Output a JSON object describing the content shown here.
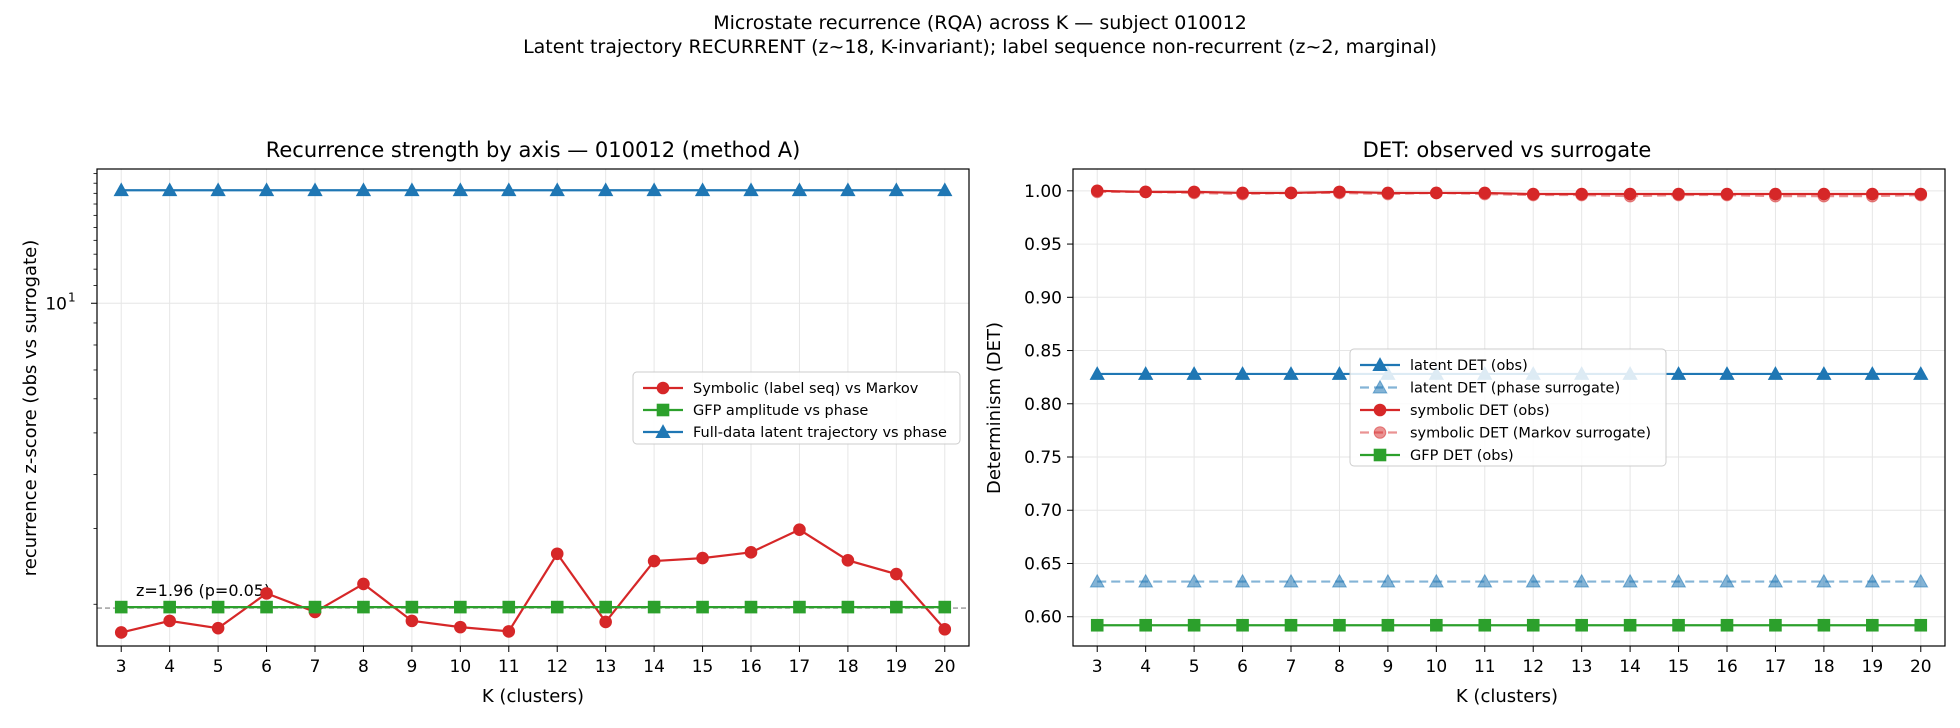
{
  "suptitle": {
    "line1": "Microstate recurrence (RQA) across K — subject 010012",
    "line2": "Latent trajectory RECURRENT (z~18, K-invariant); label sequence non-recurrent (z~2, marginal)"
  },
  "chart_data": [
    {
      "type": "line",
      "title": "Recurrence strength by axis — 010012 (method A)",
      "xlabel": "K (clusters)",
      "ylabel": "recurrence z-score (obs vs surrogate)",
      "yscale": "log",
      "ylim": [
        1.6,
        20.5
      ],
      "y_ticks": [
        {
          "value": 10,
          "base": "10",
          "exp": "1"
        }
      ],
      "x": [
        3,
        4,
        5,
        6,
        7,
        8,
        9,
        10,
        11,
        12,
        13,
        14,
        15,
        16,
        17,
        18,
        19,
        20
      ],
      "grid": true,
      "legend_position": "center-right",
      "reference_line": {
        "y": 1.96,
        "label": "z=1.96 (p=0.05)",
        "color": "#7f7f7f"
      },
      "series": [
        {
          "name": "Symbolic (label seq) vs Markov",
          "color": "#d62728",
          "marker": "circle",
          "values": [
            1.72,
            1.83,
            1.76,
            2.12,
            1.92,
            2.23,
            1.83,
            1.77,
            1.73,
            2.62,
            1.82,
            2.52,
            2.56,
            2.64,
            2.98,
            2.53,
            2.35,
            1.75
          ]
        },
        {
          "name": "GFP amplitude vs phase",
          "color": "#2ca02c",
          "marker": "square",
          "values": [
            1.97,
            1.97,
            1.97,
            1.97,
            1.97,
            1.97,
            1.97,
            1.97,
            1.97,
            1.97,
            1.97,
            1.97,
            1.97,
            1.97,
            1.97,
            1.97,
            1.97,
            1.97
          ]
        },
        {
          "name": "Full-data latent trajectory vs phase",
          "color": "#1f77b4",
          "marker": "triangle",
          "values": [
            18.3,
            18.3,
            18.3,
            18.3,
            18.3,
            18.3,
            18.3,
            18.3,
            18.3,
            18.3,
            18.3,
            18.3,
            18.3,
            18.3,
            18.3,
            18.3,
            18.3,
            18.3
          ]
        }
      ]
    },
    {
      "type": "line",
      "title": "DET: observed vs surrogate",
      "xlabel": "K (clusters)",
      "ylabel": "Determinism (DET)",
      "ylim": [
        0.5725,
        1.0205
      ],
      "y_ticks": [
        0.6,
        0.65,
        0.7,
        0.75,
        0.8,
        0.85,
        0.9,
        0.95,
        1.0
      ],
      "x": [
        3,
        4,
        5,
        6,
        7,
        8,
        9,
        10,
        11,
        12,
        13,
        14,
        15,
        16,
        17,
        18,
        19,
        20
      ],
      "grid": true,
      "legend_position": "center",
      "series": [
        {
          "name": "latent DET (obs)",
          "color": "#1f77b4",
          "marker": "triangle",
          "style": "solid",
          "values": [
            0.828,
            0.828,
            0.828,
            0.828,
            0.828,
            0.828,
            0.828,
            0.828,
            0.828,
            0.828,
            0.828,
            0.828,
            0.828,
            0.828,
            0.828,
            0.828,
            0.828,
            0.828
          ]
        },
        {
          "name": "latent DET (phase surrogate)",
          "color": "#1f77b4",
          "marker": "triangle",
          "style": "dashed",
          "alpha": 0.55,
          "values": [
            0.633,
            0.633,
            0.633,
            0.633,
            0.633,
            0.633,
            0.633,
            0.633,
            0.633,
            0.633,
            0.633,
            0.633,
            0.633,
            0.633,
            0.633,
            0.633,
            0.633,
            0.633
          ]
        },
        {
          "name": "symbolic DET (obs)",
          "color": "#d62728",
          "marker": "circle",
          "style": "solid",
          "values": [
            1.0,
            0.999,
            0.999,
            0.998,
            0.998,
            0.999,
            0.998,
            0.998,
            0.998,
            0.997,
            0.997,
            0.997,
            0.997,
            0.997,
            0.997,
            0.997,
            0.997,
            0.997
          ]
        },
        {
          "name": "symbolic DET (Markov surrogate)",
          "color": "#d62728",
          "marker": "circle",
          "style": "dashed",
          "alpha": 0.5,
          "values": [
            0.999,
            0.999,
            0.998,
            0.997,
            0.998,
            0.998,
            0.997,
            0.998,
            0.997,
            0.996,
            0.996,
            0.995,
            0.996,
            0.996,
            0.995,
            0.995,
            0.995,
            0.996
          ]
        },
        {
          "name": "GFP DET (obs)",
          "color": "#2ca02c",
          "marker": "square",
          "style": "solid",
          "values": [
            0.592,
            0.592,
            0.592,
            0.592,
            0.592,
            0.592,
            0.592,
            0.592,
            0.592,
            0.592,
            0.592,
            0.592,
            0.592,
            0.592,
            0.592,
            0.592,
            0.592,
            0.592
          ]
        }
      ]
    }
  ]
}
